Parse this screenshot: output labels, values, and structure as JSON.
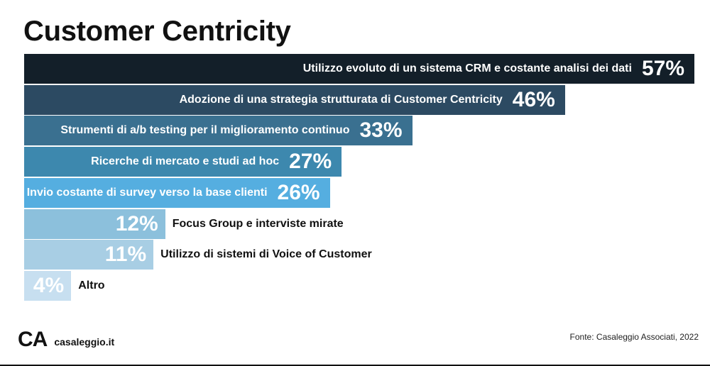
{
  "header": {
    "title": "Customer Centricity"
  },
  "chart_data": {
    "type": "bar",
    "orientation": "horizontal",
    "title": "Customer Centricity",
    "categories": [
      "Utilizzo evoluto di un sistema CRM e costante analisi dei dati",
      "Adozione di una strategia strutturata di Customer Centricity",
      "Strumenti di a/b testing per il miglioramento continuo",
      "Ricerche di mercato e studi ad hoc",
      "Invio costante di survey verso la base clienti",
      "Focus Group e interviste mirate",
      "Utilizzo di sistemi di Voice of Customer",
      "Altro"
    ],
    "values": [
      57,
      46,
      33,
      27,
      26,
      12,
      11,
      4
    ],
    "value_labels": [
      "57%",
      "46%",
      "33%",
      "27%",
      "26%",
      "12%",
      "11%",
      "4%"
    ],
    "colors": [
      "#131f29",
      "#2c4a62",
      "#3a7090",
      "#3d88ae",
      "#55aee0",
      "#8cc0dc",
      "#a8cee4",
      "#c7dff0"
    ],
    "xlim": [
      0,
      57
    ],
    "grid": false,
    "legend": "none"
  },
  "footer": {
    "logo": "CA",
    "site": "casaleggio.it",
    "source": "Fonte: Casaleggio Associati, 2022"
  }
}
